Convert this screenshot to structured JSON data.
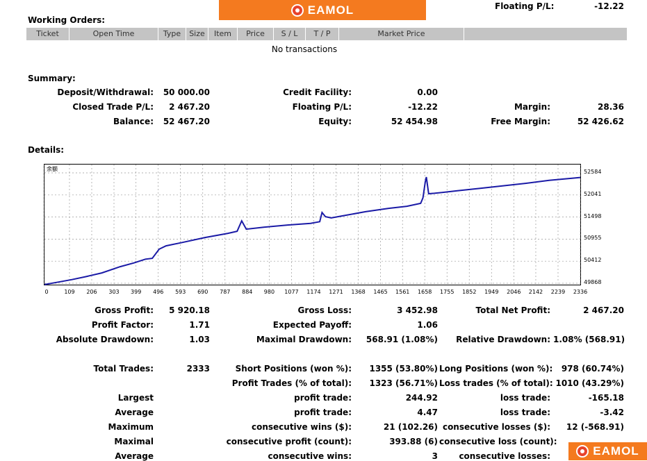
{
  "logo": {
    "text": "EAMOL"
  },
  "header": {
    "floating_label": "Floating P/L:",
    "floating_value": "-12.22"
  },
  "working_orders": {
    "title": "Working Orders:",
    "columns": [
      "Ticket",
      "Open Time",
      "Type",
      "Size",
      "Item",
      "Price",
      "S / L",
      "T / P",
      "Market Price",
      ""
    ],
    "empty_text": "No transactions"
  },
  "summary": {
    "title": "Summary:",
    "deposit_label": "Deposit/Withdrawal:",
    "deposit_value": "50 000.00",
    "closed_label": "Closed Trade P/L:",
    "closed_value": "2 467.20",
    "balance_label": "Balance:",
    "balance_value": "52 467.20",
    "credit_label": "Credit Facility:",
    "credit_value": "0.00",
    "floating_label": "Floating P/L:",
    "floating_value": "-12.22",
    "equity_label": "Equity:",
    "equity_value": "52 454.98",
    "margin_label": "Margin:",
    "margin_value": "28.36",
    "free_margin_label": "Free Margin:",
    "free_margin_value": "52 426.62"
  },
  "details": {
    "title": "Details:",
    "chart_corner_label": "余额",
    "gross_profit_label": "Gross Profit:",
    "gross_profit_value": "5 920.18",
    "gross_loss_label": "Gross Loss:",
    "gross_loss_value": "3 452.98",
    "total_net_label": "Total Net Profit:",
    "total_net_value": "2 467.20",
    "profit_factor_label": "Profit Factor:",
    "profit_factor_value": "1.71",
    "expected_payoff_label": "Expected Payoff:",
    "expected_payoff_value": "1.06",
    "abs_dd_label": "Absolute Drawdown:",
    "abs_dd_value": "1.03",
    "max_dd_label": "Maximal Drawdown:",
    "max_dd_value": "568.91 (1.08%)",
    "rel_dd_label": "Relative Drawdown:",
    "rel_dd_value": "1.08% (568.91)",
    "total_trades_label": "Total Trades:",
    "total_trades_value": "2333",
    "short_label": "Short Positions (won %):",
    "short_value": "1355 (53.80%)",
    "long_label": "Long Positions (won %):",
    "long_value": "978 (60.74%)",
    "profit_trades_label": "Profit Trades (% of total):",
    "profit_trades_value": "1323 (56.71%)",
    "loss_trades_label": "Loss trades (% of total):",
    "loss_trades_value": "1010 (43.29%)",
    "largest_label": "Largest",
    "largest_profit_label": "profit trade:",
    "largest_profit_value": "244.92",
    "largest_loss_label": "loss trade:",
    "largest_loss_value": "-165.18",
    "average_label": "Average",
    "average_profit_label": "profit trade:",
    "average_profit_value": "4.47",
    "average_loss_label": "loss trade:",
    "average_loss_value": "-3.42",
    "maximum_label": "Maximum",
    "max_wins_label": "consecutive wins ($):",
    "max_wins_value": "21 (102.26)",
    "max_losses_label": "consecutive losses ($):",
    "max_losses_value": "12 (-568.91)",
    "maximal_label": "Maximal",
    "maximal_profit_label": "consecutive profit (count):",
    "maximal_profit_value": "393.88 (6)",
    "maximal_loss_label": "consecutive loss (count):",
    "average2_label": "Average",
    "avg_wins_label": "consecutive wins:",
    "avg_wins_value": "3",
    "avg_losses_label": "consecutive losses:"
  },
  "chart_data": {
    "type": "line",
    "series_color": "#1a1aa6",
    "x_ticks": [
      "0",
      "109",
      "206",
      "303",
      "399",
      "496",
      "593",
      "690",
      "787",
      "884",
      "980",
      "1077",
      "1174",
      "1271",
      "1368",
      "1465",
      "1561",
      "1658",
      "1755",
      "1852",
      "1949",
      "2046",
      "2142",
      "2239",
      "2336"
    ],
    "y_ticks": [
      "52584",
      "52041",
      "51498",
      "50955",
      "50412",
      "49868"
    ],
    "xlim": [
      0,
      2336
    ],
    "ylim": [
      49868,
      52584
    ],
    "grid": true,
    "x": [
      0,
      60,
      120,
      180,
      250,
      330,
      390,
      440,
      470,
      500,
      530,
      600,
      700,
      800,
      840,
      860,
      880,
      960,
      1060,
      1160,
      1200,
      1210,
      1225,
      1250,
      1300,
      1400,
      1500,
      1580,
      1640,
      1650,
      1660,
      1665,
      1675,
      1700,
      1800,
      1900,
      2000,
      2100,
      2200,
      2300,
      2336
    ],
    "y": [
      49870,
      49930,
      49990,
      50060,
      50150,
      50300,
      50390,
      50480,
      50500,
      50720,
      50800,
      50880,
      51000,
      51100,
      51150,
      51400,
      51200,
      51250,
      51300,
      51340,
      51380,
      51600,
      51500,
      51470,
      51520,
      51620,
      51700,
      51750,
      51820,
      51950,
      52330,
      52450,
      52050,
      52060,
      52120,
      52180,
      52240,
      52300,
      52370,
      52420,
      52440
    ]
  }
}
